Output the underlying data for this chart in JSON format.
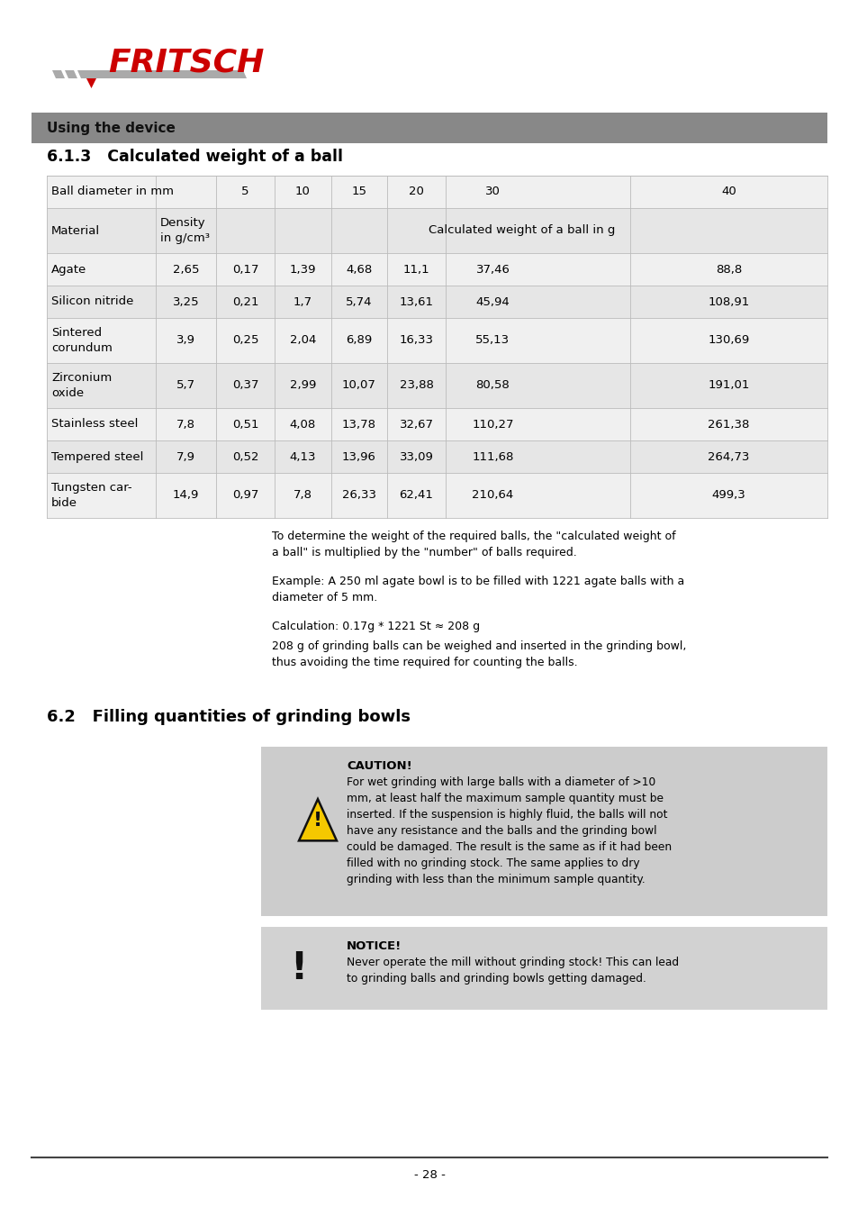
{
  "page_bg": "#ffffff",
  "header_bar_color": "#888888",
  "header_text": "Using the device",
  "section_title": "6.1.3   Calculated weight of a ball",
  "section2_title": "6.2   Filling quantities of grinding bowls",
  "table_row_bg_light": "#f0f0f0",
  "table_row_bg_dark": "#e6e6e6",
  "table_rows": [
    [
      "Agate",
      "2,65",
      "0,17",
      "1,39",
      "4,68",
      "11,1",
      "37,46",
      "88,8"
    ],
    [
      "Silicon nitride",
      "3,25",
      "0,21",
      "1,7",
      "5,74",
      "13,61",
      "45,94",
      "108,91"
    ],
    [
      "Sintered\ncorundum",
      "3,9",
      "0,25",
      "2,04",
      "6,89",
      "16,33",
      "55,13",
      "130,69"
    ],
    [
      "Zirconium\noxide",
      "5,7",
      "0,37",
      "2,99",
      "10,07",
      "23,88",
      "80,58",
      "191,01"
    ],
    [
      "Stainless steel",
      "7,8",
      "0,51",
      "4,08",
      "13,78",
      "32,67",
      "110,27",
      "261,38"
    ],
    [
      "Tempered steel",
      "7,9",
      "0,52",
      "4,13",
      "13,96",
      "33,09",
      "111,68",
      "264,73"
    ],
    [
      "Tungsten car-\nbide",
      "14,9",
      "0,97",
      "7,8",
      "26,33",
      "62,41",
      "210,64",
      "499,3"
    ]
  ],
  "note_text1": "To determine the weight of the required balls, the \"calculated weight of\na ball\" is multiplied by the \"number\" of balls required.",
  "note_text2": "Example: A 250 ml agate bowl is to be filled with 1221 agate balls with a\ndiameter of 5 mm.",
  "note_text3": "Calculation: 0.17g * 1221 St ≈ 208 g",
  "note_text4": "208 g of grinding balls can be weighed and inserted in the grinding bowl,\nthus avoiding the time required for counting the balls.",
  "caution_box_bg": "#cccccc",
  "caution_title": "CAUTION!",
  "caution_text": "For wet grinding with large balls with a diameter of >10\nmm, at least half the maximum sample quantity must be\ninserted. If the suspension is highly fluid, the balls will not\nhave any resistance and the balls and the grinding bowl\ncould be damaged. The result is the same as if it had been\nfilled with no grinding stock. The same applies to dry\ngrinding with less than the minimum sample quantity.",
  "notice_box_bg": "#d2d2d2",
  "notice_title": "NOTICE!",
  "notice_text": "Never operate the mill without grinding stock! This can lead\nto grinding balls and grinding bowls getting damaged.",
  "page_number": "- 28 -",
  "fritsch_red": "#cc0000",
  "fritsch_gray": "#999999",
  "logo_text": "FRITSCH",
  "col_widths_comment": "Material=118, Density=65, 5=65, 10=65, 15=65, 20=65, 30=100, gap=100, 40=219"
}
